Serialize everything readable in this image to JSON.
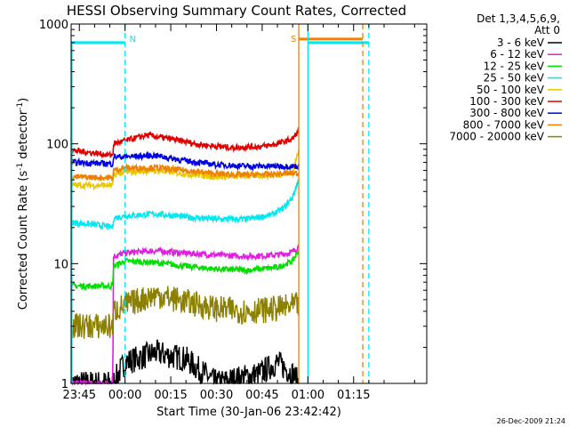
{
  "chart_data": {
    "type": "line",
    "title": "HESSI Observing Summary Count Rates, Corrected",
    "xlabel": "Start Time (30-Jan-06 23:42:42)",
    "ylabel_main": "Corrected Count Rate (s",
    "ylabel_sup1": "-1",
    "ylabel_mid": " detector",
    "ylabel_sup2": "-1",
    "ylabel_end": ")",
    "yscale": "log",
    "ylim": [
      1,
      1000
    ],
    "yticks": [
      {
        "value": 1,
        "label": "1"
      },
      {
        "value": 10,
        "label": "10"
      },
      {
        "value": 100,
        "label": "100"
      },
      {
        "value": 1000,
        "label": "1000"
      }
    ],
    "xlim_minutes": [
      -17.7,
      99
    ],
    "xticks": [
      {
        "minutes": -15,
        "label": "23:45"
      },
      {
        "minutes": 0,
        "label": "00:00"
      },
      {
        "minutes": 15,
        "label": "00:15"
      },
      {
        "minutes": 30,
        "label": "00:30"
      },
      {
        "minutes": 45,
        "label": "00:45"
      },
      {
        "minutes": 60,
        "label": "01:00"
      },
      {
        "minutes": 75,
        "label": "01:15"
      }
    ],
    "legend": {
      "position": "top-right-outside",
      "header": [
        "Det 1,3,4,5,6,9,",
        "Att 0"
      ],
      "entries": [
        {
          "label": "3 - 6 keV",
          "color": "#000000"
        },
        {
          "label": "6 - 12 keV",
          "color": "#e01ee0"
        },
        {
          "label": "12 - 25 keV",
          "color": "#00e000"
        },
        {
          "label": "25 - 50 keV",
          "color": "#00e8f0"
        },
        {
          "label": "50 - 100 keV",
          "color": "#e8c800"
        },
        {
          "label": "100 - 300 keV",
          "color": "#e00000"
        },
        {
          "label": "300 - 800 keV",
          "color": "#0000e8"
        },
        {
          "label": "800 - 7000 keV",
          "color": "#f08000"
        },
        {
          "label": "7000 - 20000 keV",
          "color": "#8c8000"
        }
      ]
    },
    "markers": [
      {
        "label": "N",
        "minutes": 0,
        "color": "#00e8f0",
        "style": "dashed"
      },
      {
        "label": "S",
        "minutes": 57,
        "color": "#f08000",
        "style": "solid"
      }
    ],
    "other_lines": [
      {
        "minutes": 60,
        "color": "#00e8f0",
        "style": "solid"
      },
      {
        "minutes": 78,
        "color": "#f08000",
        "style": "dashed"
      },
      {
        "minutes": 80,
        "color": "#00e8f0",
        "style": "dashed"
      }
    ],
    "night_bar": {
      "color": "#00e8f0",
      "value": 700,
      "segments": [
        [
          -17.7,
          0
        ],
        [
          60,
          80
        ]
      ]
    },
    "saa_bar": {
      "color": "#f08000",
      "value": 700,
      "segments": [
        [
          57,
          78
        ]
      ]
    },
    "data_interval_minutes": [
      -17.7,
      57
    ],
    "series": [
      {
        "name": "3 - 6 keV",
        "color": "#000000",
        "x": [
          -17,
          -12,
          -4,
          0,
          10,
          20,
          30,
          44,
          50,
          55,
          57
        ],
        "y": [
          1,
          1,
          1,
          1.5,
          1.8,
          1.6,
          1,
          1.2,
          1.5,
          1.2,
          1
        ]
      },
      {
        "name": "6 - 12 keV",
        "color": "#e01ee0",
        "x": [
          -17,
          -4,
          -3.8,
          0,
          10,
          20,
          30,
          40,
          50,
          55,
          57
        ],
        "y": [
          1,
          1,
          11.5,
          12.3,
          12.8,
          12.2,
          11.8,
          11.5,
          11.8,
          12.5,
          14
        ]
      },
      {
        "name": "12 - 25 keV",
        "color": "#00e000",
        "x": [
          -17,
          -4,
          -3.8,
          0,
          10,
          20,
          30,
          40,
          50,
          55,
          57
        ],
        "y": [
          6.5,
          6.5,
          9.5,
          10.5,
          10.2,
          9.5,
          9,
          8.8,
          9.3,
          10.5,
          13
        ]
      },
      {
        "name": "25 - 50 keV",
        "color": "#00e8f0",
        "x": [
          -17,
          -9,
          -4,
          -3.8,
          0,
          10,
          20,
          30,
          40,
          48,
          52,
          55,
          57
        ],
        "y": [
          22,
          21,
          20,
          24,
          25,
          26,
          24.5,
          23.5,
          23.5,
          25.5,
          29,
          36,
          50
        ]
      },
      {
        "name": "50 - 100 keV",
        "color": "#e8c800",
        "x": [
          -17,
          -4,
          -3.8,
          0,
          10,
          20,
          30,
          40,
          50,
          55,
          57
        ],
        "y": [
          45,
          45,
          55,
          58,
          60,
          56,
          53,
          54,
          55,
          58,
          90
        ]
      },
      {
        "name": "100 - 300 keV",
        "color": "#e00000",
        "x": [
          -17,
          -4,
          -3.8,
          0,
          7,
          15,
          25,
          35,
          45,
          50,
          55,
          57
        ],
        "y": [
          88,
          80,
          100,
          106,
          118,
          110,
          98,
          93,
          95,
          100,
          110,
          130
        ]
      },
      {
        "name": "300 - 800 keV",
        "color": "#0000e8",
        "x": [
          -17,
          -4,
          -3.8,
          0,
          10,
          20,
          30,
          40,
          50,
          57
        ],
        "y": [
          70,
          68,
          78,
          78,
          80,
          72,
          67,
          65,
          65,
          65
        ]
      },
      {
        "name": "800 - 7000 keV",
        "color": "#f08000",
        "x": [
          -17,
          -4,
          -3.8,
          0,
          10,
          20,
          30,
          40,
          50,
          57
        ],
        "y": [
          53,
          52,
          60,
          63,
          63,
          60,
          56,
          55,
          56,
          57
        ]
      },
      {
        "name": "7000 - 20000 keV",
        "color": "#8c8000",
        "x": [
          -17,
          -4,
          -3.8,
          0,
          10,
          20,
          30,
          40,
          50,
          57
        ],
        "y": [
          3,
          3,
          4,
          4.5,
          5.5,
          4.8,
          4.2,
          4,
          4.2,
          4.5
        ]
      }
    ]
  },
  "footer": {
    "timestamp": "26-Dec-2009 21:24"
  }
}
